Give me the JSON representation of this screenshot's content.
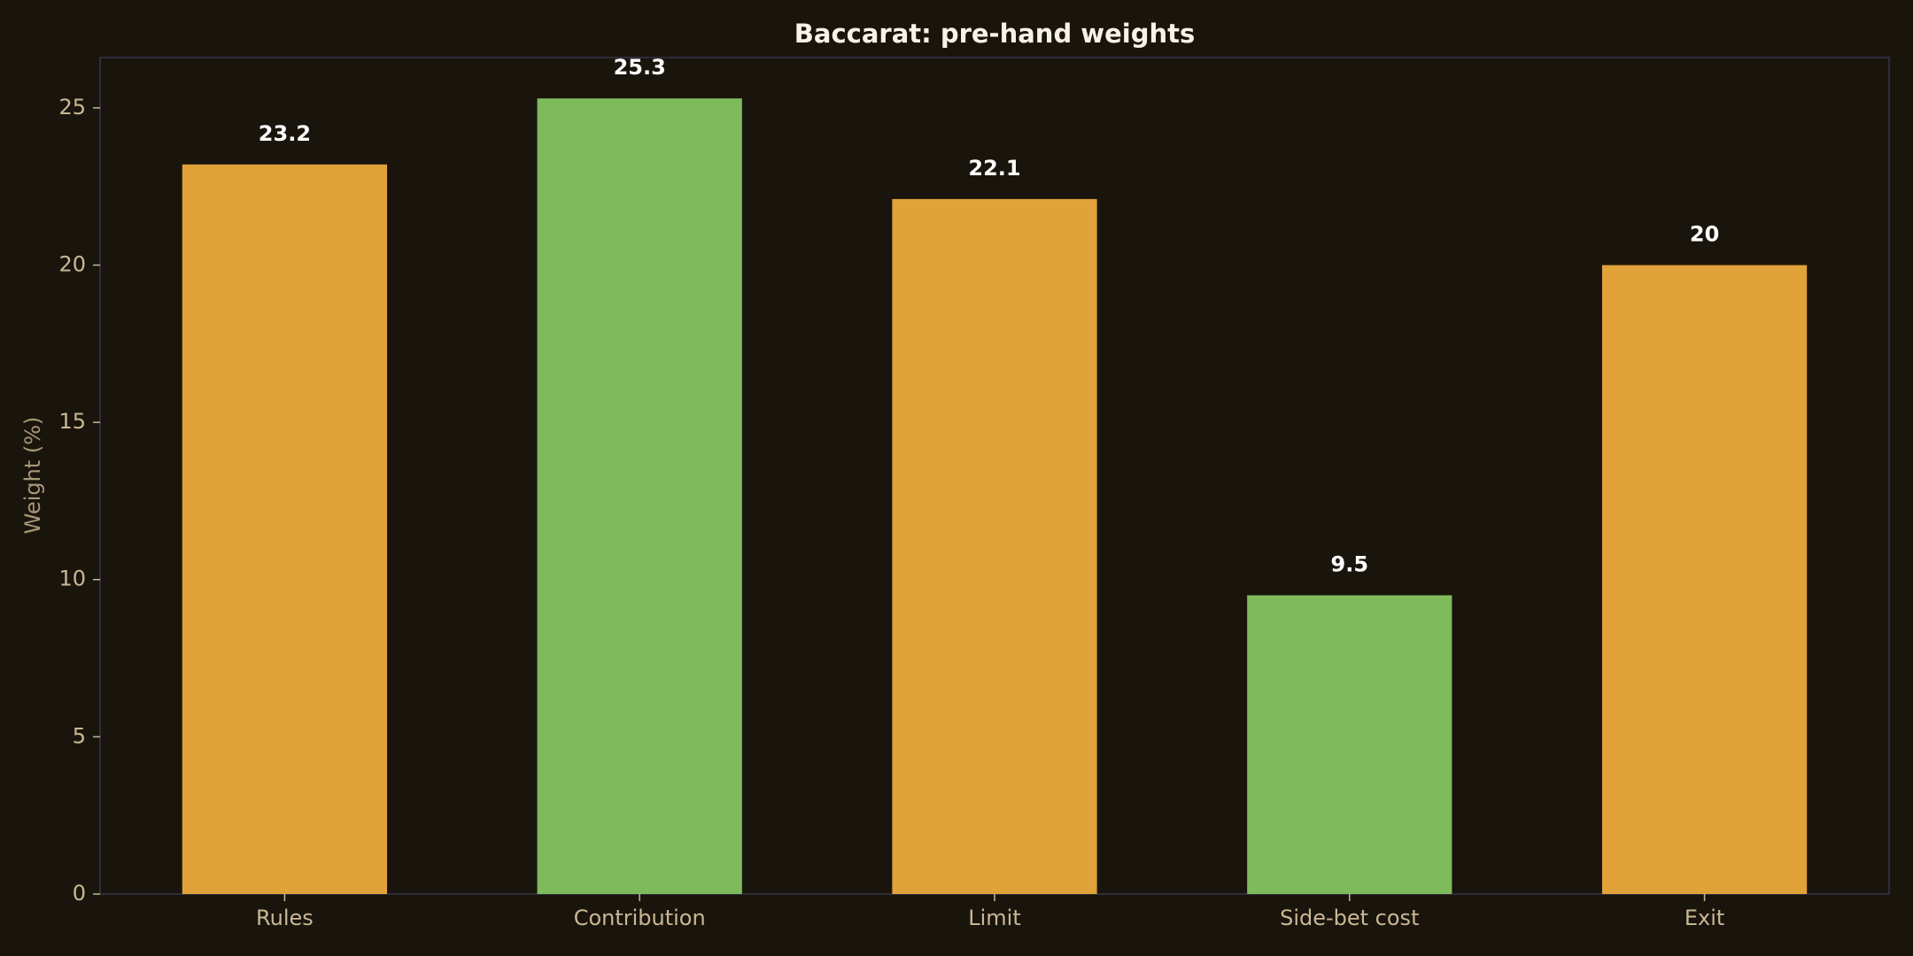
{
  "chart_data": {
    "type": "bar",
    "title": "Baccarat: pre-hand weights",
    "y_label": "Weight (%)",
    "categories": [
      "Rules",
      "Contribution",
      "Limit",
      "Side-bet cost",
      "Exit"
    ],
    "values": [
      23.2,
      25.3,
      22.1,
      9.5,
      20
    ],
    "colors": [
      "#e1a23a",
      "#7fba5c",
      "#e1a23a",
      "#7fba5c",
      "#e1a23a"
    ],
    "ylim": [
      0,
      26.6
    ],
    "yticks": [
      0,
      5,
      10,
      15,
      20,
      25
    ],
    "grid": false
  }
}
